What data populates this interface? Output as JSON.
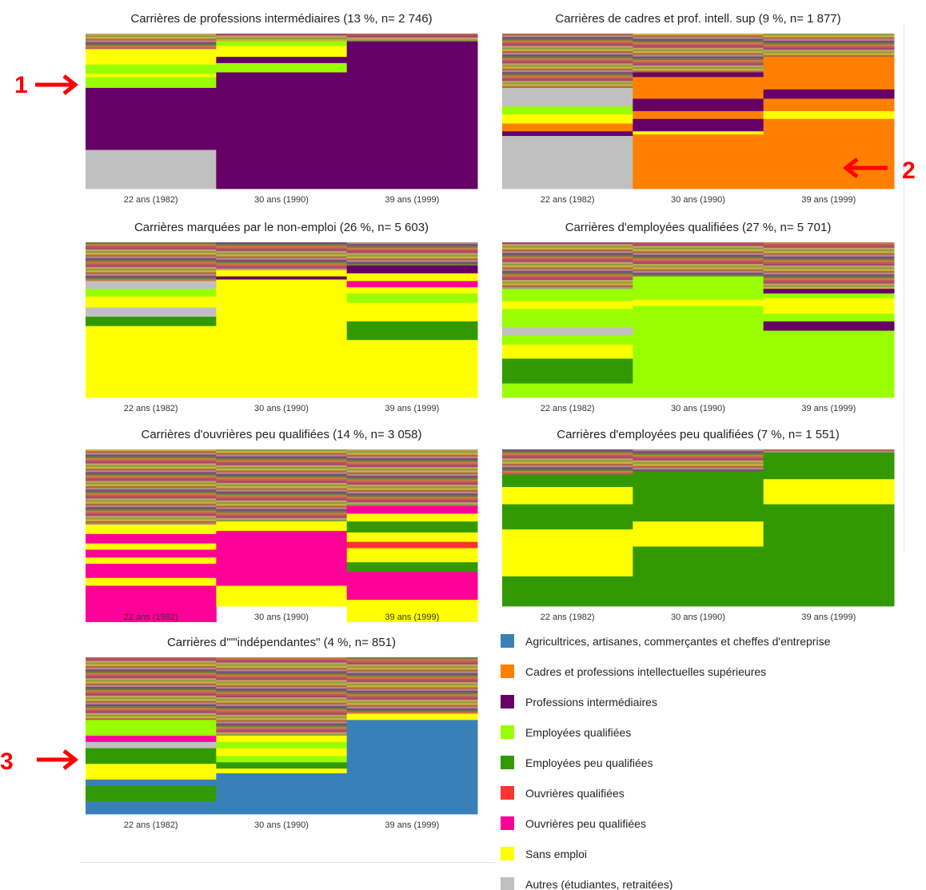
{
  "colors": {
    "A": "#3a80b8",
    "C": "#ff8000",
    "P": "#660066",
    "EQ": "#99ff00",
    "EP": "#339900",
    "OQ": "#ff3333",
    "OP": "#ff0099",
    "S": "#ffff00",
    "AU": "#c0c0c0",
    "annotation": "#ff0000"
  },
  "x_labels": [
    "22 ans (1982)",
    "30 ans (1990)",
    "39 ans (1999)"
  ],
  "legend": [
    {
      "code": "A",
      "label": "Agricultrices, artisanes, commerçantes et cheffes d'entreprise"
    },
    {
      "code": "C",
      "label": "Cadres et professions intellectuelles supérieures"
    },
    {
      "code": "P",
      "label": "Professions intermédiaires"
    },
    {
      "code": "EQ",
      "label": "Employées qualifiées"
    },
    {
      "code": "EP",
      "label": "Employées peu qualifiées"
    },
    {
      "code": "OQ",
      "label": "Ouvrières qualifiées"
    },
    {
      "code": "OP",
      "label": "Ouvrières peu qualifiées"
    },
    {
      "code": "S",
      "label": "Sans emploi"
    },
    {
      "code": "AU",
      "label": "Autres (étudiantes, retraitées)"
    }
  ],
  "annotations": [
    {
      "label": "1",
      "direction": "right"
    },
    {
      "label": "2",
      "direction": "left"
    },
    {
      "label": "3",
      "direction": "right"
    }
  ],
  "chart_data": [
    {
      "type": "sequence-index-plot",
      "title": "Carrières de professions intermédiaires (13 %, n= 2 746)",
      "x": [
        "22 ans (1982)",
        "30 ans (1990)",
        "39 ans (1999)"
      ],
      "columns": [
        {
          "top_mix": 0.1,
          "blocks": [
            [
              "S",
              0.1
            ],
            [
              "EQ",
              0.06
            ],
            [
              "S",
              0.02
            ],
            [
              "EQ",
              0.07
            ],
            [
              "P",
              0.4
            ],
            [
              "AU",
              0.25
            ]
          ]
        },
        {
          "top_mix": 0.05,
          "blocks": [
            [
              "EQ",
              0.03
            ],
            [
              "S",
              0.07
            ],
            [
              "P",
              0.04
            ],
            [
              "EQ",
              0.06
            ],
            [
              "P",
              0.75
            ]
          ]
        },
        {
          "top_mix": 0.05,
          "blocks": [
            [
              "P",
              0.95
            ]
          ]
        }
      ]
    },
    {
      "type": "sequence-index-plot",
      "title": "Carrières de cadres et prof. intell. sup (9 %, n= 1 877)",
      "x": [
        "22 ans (1982)",
        "30 ans (1990)",
        "39 ans (1999)"
      ],
      "columns": [
        {
          "top_mix": 0.35,
          "blocks": [
            [
              "AU",
              0.12
            ],
            [
              "EQ",
              0.05
            ],
            [
              "S",
              0.06
            ],
            [
              "C",
              0.05
            ],
            [
              "P",
              0.03
            ],
            [
              "AU",
              0.34
            ]
          ]
        },
        {
          "top_mix": 0.25,
          "blocks": [
            [
              "P",
              0.03
            ],
            [
              "C",
              0.14
            ],
            [
              "P",
              0.08
            ],
            [
              "C",
              0.05
            ],
            [
              "P",
              0.08
            ],
            [
              "S",
              0.02
            ],
            [
              "C",
              0.35
            ]
          ]
        },
        {
          "top_mix": 0.15,
          "blocks": [
            [
              "C",
              0.21
            ],
            [
              "P",
              0.06
            ],
            [
              "C",
              0.08
            ],
            [
              "S",
              0.05
            ],
            [
              "C",
              0.45
            ]
          ]
        }
      ]
    },
    {
      "type": "sequence-index-plot",
      "title": "Carrières marquées par le non-emploi (26 %, n= 5 603)",
      "x": [
        "22 ans (1982)",
        "30 ans (1990)",
        "39 ans (1999)"
      ],
      "columns": [
        {
          "top_mix": 0.25,
          "blocks": [
            [
              "AU",
              0.05
            ],
            [
              "EQ",
              0.05
            ],
            [
              "S",
              0.07
            ],
            [
              "AU",
              0.06
            ],
            [
              "EP",
              0.06
            ],
            [
              "S",
              0.46
            ]
          ]
        },
        {
          "top_mix": 0.18,
          "blocks": [
            [
              "S",
              0.04
            ],
            [
              "P",
              0.02
            ],
            [
              "S",
              0.76
            ]
          ]
        },
        {
          "top_mix": 0.15,
          "blocks": [
            [
              "P",
              0.05
            ],
            [
              "S",
              0.05
            ],
            [
              "OP",
              0.04
            ],
            [
              "S",
              0.04
            ],
            [
              "EQ",
              0.06
            ],
            [
              "S",
              0.12
            ],
            [
              "EP",
              0.12
            ],
            [
              "S",
              0.37
            ]
          ]
        }
      ]
    },
    {
      "type": "sequence-index-plot",
      "title": "Carrières d'employées qualifiées (27 %, n= 5 701)",
      "x": [
        "22 ans (1982)",
        "30 ans (1990)",
        "39 ans (1999)"
      ],
      "columns": [
        {
          "top_mix": 0.3,
          "blocks": [
            [
              "EQ",
              0.08
            ],
            [
              "S",
              0.05
            ],
            [
              "EQ",
              0.12
            ],
            [
              "AU",
              0.05
            ],
            [
              "EQ",
              0.06
            ],
            [
              "S",
              0.09
            ],
            [
              "EP",
              0.16
            ],
            [
              "EQ",
              0.09
            ]
          ]
        },
        {
          "top_mix": 0.22,
          "blocks": [
            [
              "EQ",
              0.15
            ],
            [
              "S",
              0.04
            ],
            [
              "EQ",
              0.59
            ]
          ]
        },
        {
          "top_mix": 0.3,
          "blocks": [
            [
              "P",
              0.03
            ],
            [
              "EQ",
              0.03
            ],
            [
              "S",
              0.1
            ],
            [
              "EQ",
              0.05
            ],
            [
              "P",
              0.06
            ],
            [
              "EQ",
              0.43
            ]
          ]
        }
      ]
    },
    {
      "type": "sequence-index-plot",
      "title": "Carrières d'ouvrières peu qualifiées (14 %, n= 3 058)",
      "x": [
        "22 ans (1982)",
        "30 ans (1990)",
        "39 ans (1999)"
      ],
      "columns": [
        {
          "top_mix": 0.48,
          "blocks": [
            [
              "S",
              0.06
            ],
            [
              "OP",
              0.06
            ],
            [
              "S",
              0.04
            ],
            [
              "OP",
              0.05
            ],
            [
              "S",
              0.04
            ],
            [
              "OP",
              0.09
            ],
            [
              "S",
              0.05
            ],
            [
              "OP",
              0.23
            ]
          ]
        },
        {
          "top_mix": 0.46,
          "blocks": [
            [
              "S",
              0.06
            ],
            [
              "OP",
              0.25
            ],
            [
              "OP",
              0.1
            ],
            [
              "S",
              0.13
            ]
          ]
        },
        {
          "top_mix": 0.36,
          "blocks": [
            [
              "OP",
              0.05
            ],
            [
              "S",
              0.05
            ],
            [
              "EP",
              0.07
            ],
            [
              "S",
              0.06
            ],
            [
              "OQ",
              0.04
            ],
            [
              "S",
              0.09
            ],
            [
              "EP",
              0.06
            ],
            [
              "OP",
              0.18
            ],
            [
              "S",
              0.14
            ]
          ]
        }
      ]
    },
    {
      "type": "sequence-index-plot",
      "title": "Carrières d'employées peu qualifiées (7 %, n= 1 551)",
      "x": [
        "22 ans (1982)",
        "30 ans (1990)",
        "39 ans (1999)"
      ],
      "columns": [
        {
          "top_mix": 0.16,
          "blocks": [
            [
              "EP",
              0.08
            ],
            [
              "S",
              0.11
            ],
            [
              "EP",
              0.16
            ],
            [
              "S",
              0.3
            ],
            [
              "EP",
              0.19
            ]
          ]
        },
        {
          "top_mix": 0.14,
          "blocks": [
            [
              "EP",
              0.07
            ],
            [
              "EP",
              0.08
            ],
            [
              "EP",
              0.17
            ],
            [
              "S",
              0.16
            ],
            [
              "EP",
              0.38
            ]
          ]
        },
        {
          "top_mix": 0.02,
          "blocks": [
            [
              "EP",
              0.17
            ],
            [
              "S",
              0.16
            ],
            [
              "EP",
              0.65
            ]
          ]
        }
      ]
    },
    {
      "type": "sequence-index-plot",
      "title": "Carrières d'\"\"indépendantes\" (4 %, n= 851)",
      "x": [
        "22 ans (1982)",
        "30 ans (1990)",
        "39 ans (1999)"
      ],
      "columns": [
        {
          "top_mix": 0.4,
          "blocks": [
            [
              "EQ",
              0.1
            ],
            [
              "OP",
              0.04
            ],
            [
              "AU",
              0.04
            ],
            [
              "EP",
              0.1
            ],
            [
              "S",
              0.1
            ],
            [
              "A",
              0.04
            ],
            [
              "EP",
              0.1
            ],
            [
              "A",
              0.08
            ]
          ]
        },
        {
          "top_mix": 0.5,
          "blocks": [
            [
              "S",
              0.04
            ],
            [
              "EQ",
              0.04
            ],
            [
              "S",
              0.05
            ],
            [
              "EQ",
              0.04
            ],
            [
              "EP",
              0.04
            ],
            [
              "S",
              0.03
            ],
            [
              "A",
              0.26
            ]
          ]
        },
        {
          "top_mix": 0.36,
          "blocks": [
            [
              "S",
              0.04
            ],
            [
              "A",
              0.6
            ]
          ]
        }
      ]
    }
  ]
}
